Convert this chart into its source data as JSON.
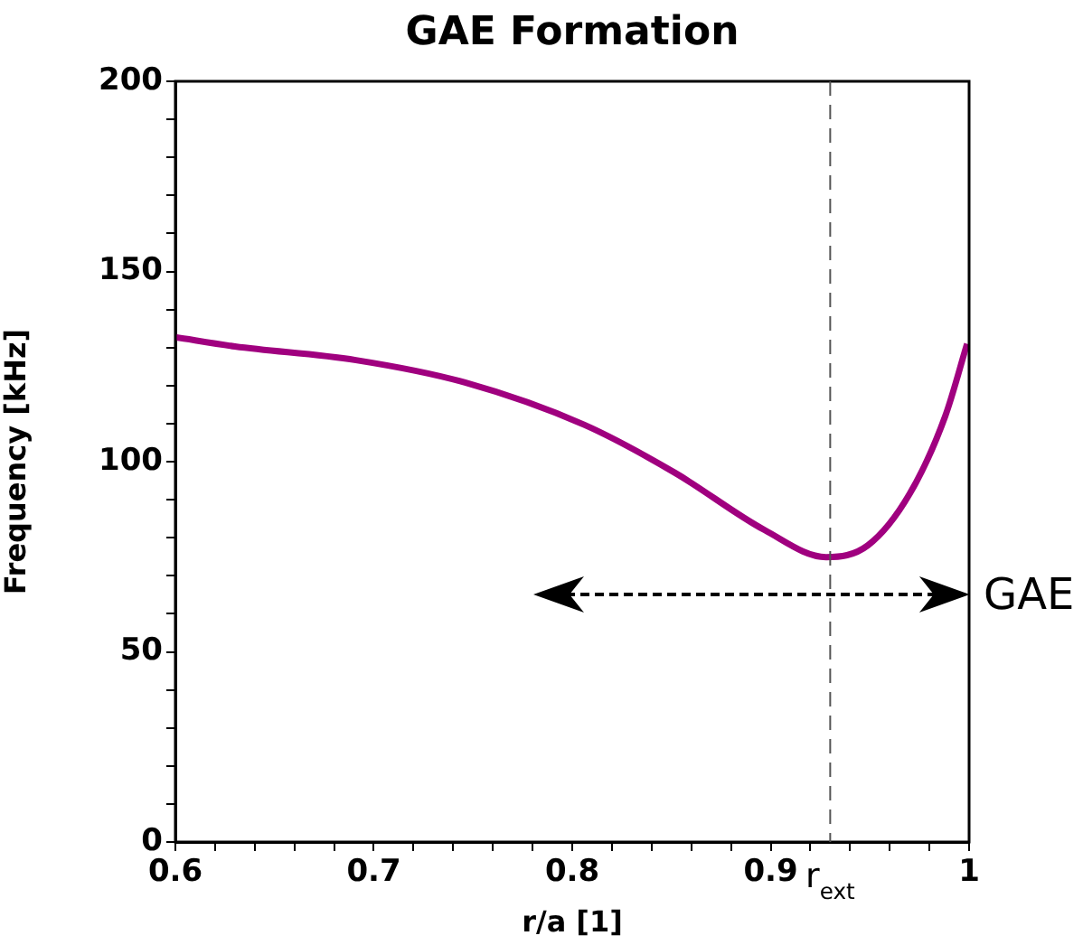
{
  "chart_data": {
    "type": "line",
    "title": "GAE Formation",
    "xlabel": "r/a [1]",
    "ylabel": "Frequency [kHz]",
    "xlim": [
      0.6,
      1
    ],
    "ylim": [
      0,
      200
    ],
    "xticks": [
      0.6,
      {
        "value": 0.62,
        "label": null
      },
      {
        "value": 0.64,
        "label": null
      },
      {
        "value": 0.66,
        "label": null
      },
      {
        "value": 0.68,
        "label": null
      },
      0.7,
      {
        "value": 0.72,
        "label": null
      },
      {
        "value": 0.74,
        "label": null
      },
      {
        "value": 0.76,
        "label": null
      },
      {
        "value": 0.78,
        "label": null
      },
      0.8,
      {
        "value": 0.82,
        "label": null
      },
      {
        "value": 0.84,
        "label": null
      },
      {
        "value": 0.86,
        "label": null
      },
      {
        "value": 0.88,
        "label": null
      },
      0.9,
      {
        "value": 0.92,
        "label": null
      },
      {
        "value": 0.94,
        "label": null
      },
      {
        "value": 0.96,
        "label": null
      },
      {
        "value": 0.98,
        "label": null
      },
      1
    ],
    "yticks": [
      0,
      {
        "value": 10,
        "label": null
      },
      {
        "value": 20,
        "label": null
      },
      {
        "value": 30,
        "label": null
      },
      {
        "value": 40,
        "label": null
      },
      50,
      {
        "value": 60,
        "label": null
      },
      {
        "value": 70,
        "label": null
      },
      {
        "value": 80,
        "label": null
      },
      {
        "value": 90,
        "label": null
      },
      100,
      {
        "value": 110,
        "label": null
      },
      {
        "value": 120,
        "label": null
      },
      {
        "value": 130,
        "label": null
      },
      {
        "value": 140,
        "label": null
      },
      150,
      {
        "value": 160,
        "label": null
      },
      {
        "value": 170,
        "label": null
      },
      {
        "value": 180,
        "label": null
      },
      {
        "value": 190,
        "label": null
      },
      200
    ],
    "grid": false,
    "legend": false,
    "marker": "none",
    "line_style": "solid",
    "x": [
      0.6,
      0.63,
      0.691,
      0.746,
      0.806,
      0.852,
      0.897,
      0.928,
      0.949,
      0.97,
      0.988,
      0.999
    ],
    "series": [
      {
        "color": "#a0007f",
        "values": [
          132.7,
          130.3,
          126.7,
          120.8,
          109.7,
          97,
          82,
          74.9,
          78,
          91.5,
          112,
          131
        ]
      }
    ],
    "ref_lines": [
      {
        "axis": "x",
        "value": 0.93,
        "label": "r$_{ext}$",
        "color": "#555555",
        "line_style": "dashed"
      }
    ],
    "annotations": [
      "GAE"
    ]
  }
}
